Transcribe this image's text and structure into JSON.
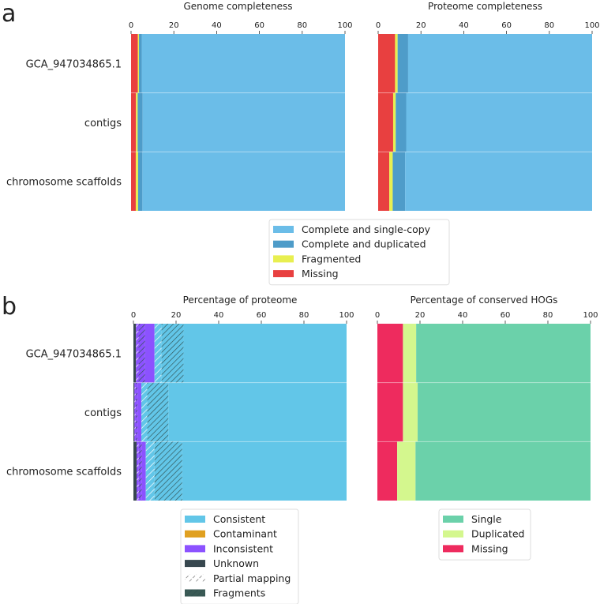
{
  "panels": {
    "a": "a",
    "b": "b"
  },
  "chart_data": [
    {
      "type": "bar",
      "orientation": "horizontal",
      "stacked": true,
      "panel": "a",
      "title": "Genome completeness",
      "categories": [
        "GCA_947034865.1",
        "contigs",
        "chromosome scaffolds"
      ],
      "xlim": [
        0,
        100
      ],
      "xticks": [
        0,
        20,
        40,
        60,
        80,
        100
      ],
      "xaxis_position": "top",
      "series": [
        {
          "name": "Missing",
          "color": "#e84040",
          "values": [
            3.2,
            2.3,
            2.2
          ]
        },
        {
          "name": "Fragmented",
          "color": "#e8ef50",
          "values": [
            0.5,
            0.8,
            1.1
          ]
        },
        {
          "name": "Complete and duplicated",
          "color": "#4e9cc9",
          "values": [
            1.3,
            2.3,
            2.0
          ]
        },
        {
          "name": "Complete and single-copy",
          "color": "#6bbde8",
          "values": [
            95.0,
            94.6,
            94.7
          ]
        }
      ]
    },
    {
      "type": "bar",
      "orientation": "horizontal",
      "stacked": true,
      "panel": "a",
      "title": "Proteome completeness",
      "categories": [
        "GCA_947034865.1",
        "contigs",
        "chromosome scaffolds"
      ],
      "xlim": [
        0,
        100
      ],
      "xticks": [
        0,
        20,
        40,
        60,
        80,
        100
      ],
      "xaxis_position": "top",
      "series": [
        {
          "name": "Missing",
          "color": "#e84040",
          "values": [
            7.9,
            7.0,
            5.2
          ]
        },
        {
          "name": "Fragmented",
          "color": "#e8ef50",
          "values": [
            1.2,
            1.2,
            1.6
          ]
        },
        {
          "name": "Complete and duplicated",
          "color": "#4e9cc9",
          "values": [
            4.9,
            4.9,
            5.8
          ]
        },
        {
          "name": "Complete and single-copy",
          "color": "#6bbde8",
          "values": [
            86.0,
            86.9,
            87.4
          ]
        }
      ]
    },
    {
      "type": "bar",
      "orientation": "horizontal",
      "stacked": true,
      "panel": "b",
      "title": "Percentage of proteome",
      "categories": [
        "GCA_947034865.1",
        "contigs",
        "chromosome scaffolds"
      ],
      "xlim": [
        0,
        100
      ],
      "xticks": [
        0,
        20,
        40,
        60,
        80,
        100
      ],
      "xaxis_position": "top",
      "series": [
        {
          "name": "Unknown",
          "color": "#37474f",
          "hatch": null,
          "values": [
            1.2,
            0.5,
            1.5
          ]
        },
        {
          "name": "Inconsistent",
          "color": "#8c52ff",
          "hatch": "partial",
          "values": [
            1.2,
            0.6,
            1.0
          ]
        },
        {
          "name": "Inconsistent",
          "color": "#8c52ff",
          "hatch": "fragments",
          "values": [
            3.1,
            0.8,
            1.5
          ]
        },
        {
          "name": "Inconsistent",
          "color": "#8c52ff",
          "hatch": null,
          "values": [
            4.4,
            1.8,
            1.8
          ]
        },
        {
          "name": "Contaminant",
          "color": "#e0a020",
          "hatch": null,
          "values": [
            0,
            0,
            0
          ]
        },
        {
          "name": "Consistent",
          "color": "#62c6e8",
          "hatch": "partial",
          "values": [
            3.3,
            2.8,
            4.1
          ]
        },
        {
          "name": "Consistent",
          "color": "#62c6e8",
          "hatch": "fragments",
          "values": [
            10.3,
            9.9,
            13.0
          ]
        },
        {
          "name": "Consistent",
          "color": "#62c6e8",
          "hatch": null,
          "values": [
            76.5,
            83.6,
            77.1
          ]
        }
      ]
    },
    {
      "type": "bar",
      "orientation": "horizontal",
      "stacked": true,
      "panel": "b",
      "title": "Percentage of conserved HOGs",
      "categories": [
        "GCA_947034865.1",
        "contigs",
        "chromosome scaffolds"
      ],
      "xlim": [
        0,
        100
      ],
      "xticks": [
        0,
        20,
        40,
        60,
        80,
        100
      ],
      "xaxis_position": "top",
      "series": [
        {
          "name": "Missing",
          "color": "#ee2b5e",
          "values": [
            12.0,
            12.0,
            9.3
          ]
        },
        {
          "name": "Duplicated",
          "color": "#d4f78e",
          "values": [
            6.2,
            6.9,
            8.6
          ]
        },
        {
          "name": "Single",
          "color": "#6bd1aa",
          "values": [
            81.8,
            81.1,
            82.1
          ]
        }
      ]
    }
  ],
  "legends": [
    {
      "items": [
        {
          "label": "Complete and single-copy",
          "color": "#6bbde8"
        },
        {
          "label": "Complete and duplicated",
          "color": "#4e9cc9"
        },
        {
          "label": "Fragmented",
          "color": "#e8ef50"
        },
        {
          "label": "Missing",
          "color": "#e84040"
        }
      ]
    },
    {
      "items": [
        {
          "label": "Consistent",
          "color": "#62c6e8"
        },
        {
          "label": "Contaminant",
          "color": "#e0a020"
        },
        {
          "label": "Inconsistent",
          "color": "#8c52ff"
        },
        {
          "label": "Unknown",
          "color": "#37474f"
        },
        {
          "label": "Partial mapping",
          "color": "#ffffff",
          "hatch": "partial"
        },
        {
          "label": "Fragments",
          "color": "#3a5a55",
          "hatch": "fragments"
        }
      ]
    },
    {
      "items": [
        {
          "label": "Single",
          "color": "#6bd1aa"
        },
        {
          "label": "Duplicated",
          "color": "#d4f78e"
        },
        {
          "label": "Missing",
          "color": "#ee2b5e"
        }
      ]
    }
  ]
}
